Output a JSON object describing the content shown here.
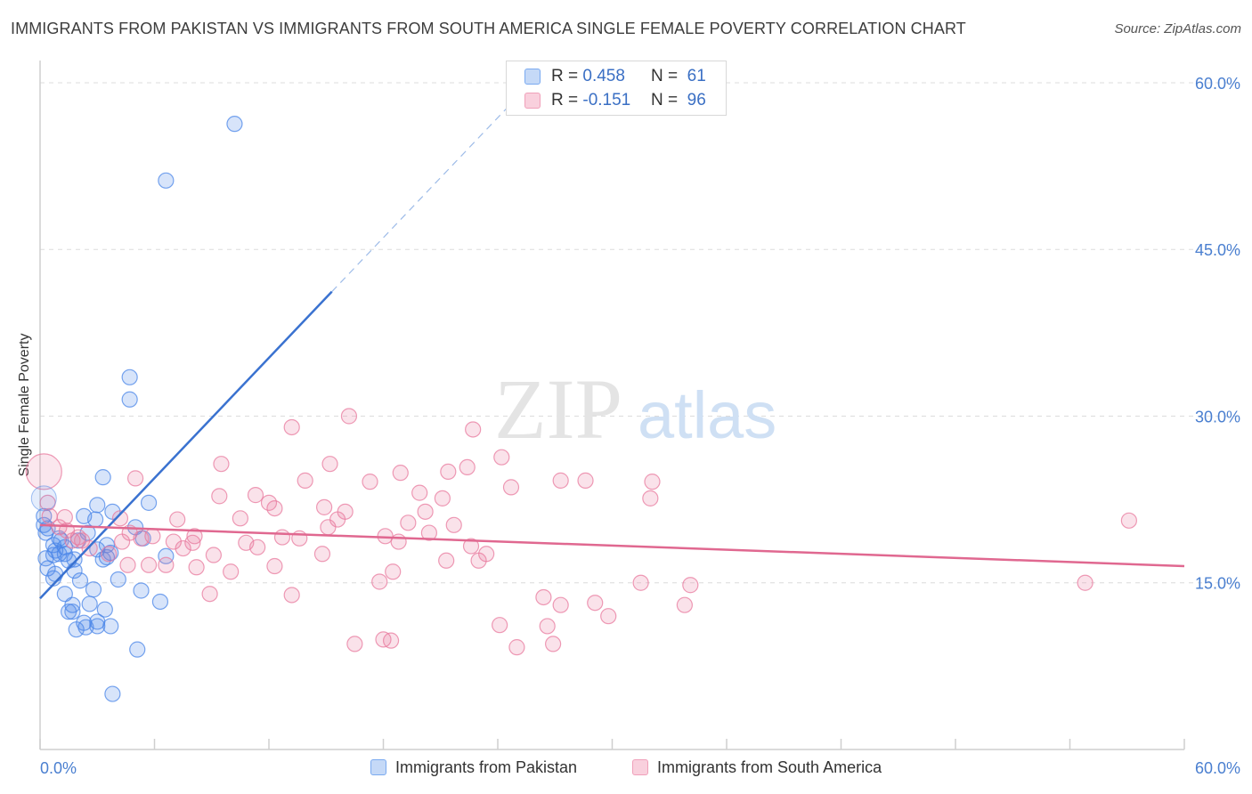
{
  "header": {
    "title": "IMMIGRANTS FROM PAKISTAN VS IMMIGRANTS FROM SOUTH AMERICA SINGLE FEMALE POVERTY CORRELATION CHART",
    "source": "Source: ZipAtlas.com"
  },
  "watermark": {
    "zip": "ZIP",
    "atlas": "atlas"
  },
  "legend": {
    "r_label": "R = ",
    "n_label": "N = ",
    "series": [
      {
        "r": "0.458",
        "n": "61",
        "color": "#7aaaf0",
        "fill": "#c5d9f7"
      },
      {
        "r": "-0.151",
        "n": "96",
        "color": "#f0a0ba",
        "fill": "#f9d0dd"
      }
    ]
  },
  "bottom_legend": {
    "items": [
      "Immigrants from Pakistan",
      "Immigrants from South America"
    ]
  },
  "chart_data": {
    "type": "scatter",
    "ylabel": "Single Female Poverty",
    "xlim": [
      0,
      60
    ],
    "ylim": [
      0,
      62
    ],
    "x_tick_labels": [
      {
        "v": 0,
        "t": "0.0%"
      },
      {
        "v": 60,
        "t": "60.0%"
      }
    ],
    "y_tick_labels": [
      {
        "v": 15,
        "t": "15.0%"
      },
      {
        "v": 30,
        "t": "30.0%"
      },
      {
        "v": 45,
        "t": "45.0%"
      },
      {
        "v": 60,
        "t": "60.0%"
      }
    ],
    "grid": true,
    "series": [
      {
        "name": "Immigrants from Pakistan",
        "color": "#4a86e8",
        "line_color": "#3a72d0",
        "trend": {
          "x0": 0,
          "y0": 13.6,
          "x1": 15.3,
          "y1": 41.2,
          "dash_to_x": 25.3,
          "dash_to_y": 59.2
        },
        "points": [
          [
            10.2,
            56.3
          ],
          [
            6.6,
            51.2
          ],
          [
            4.7,
            33.5
          ],
          [
            4.7,
            31.5
          ],
          [
            3.3,
            24.5
          ],
          [
            5.7,
            22.2
          ],
          [
            3.0,
            22.0
          ],
          [
            3.8,
            21.4
          ],
          [
            0.2,
            21.0
          ],
          [
            2.3,
            21.0
          ],
          [
            2.9,
            20.7
          ],
          [
            0.2,
            20.2
          ],
          [
            5.0,
            20.0
          ],
          [
            0.4,
            19.9
          ],
          [
            0.3,
            19.5
          ],
          [
            2.5,
            19.5
          ],
          [
            1.0,
            19.0
          ],
          [
            1.1,
            18.8
          ],
          [
            5.4,
            19.0
          ],
          [
            2.0,
            18.8
          ],
          [
            0.7,
            18.4
          ],
          [
            1.3,
            18.2
          ],
          [
            3.5,
            18.4
          ],
          [
            3.0,
            18.0
          ],
          [
            0.8,
            17.9
          ],
          [
            1.3,
            17.6
          ],
          [
            3.7,
            17.7
          ],
          [
            1.0,
            17.6
          ],
          [
            0.7,
            17.5
          ],
          [
            3.5,
            17.3
          ],
          [
            0.3,
            17.2
          ],
          [
            6.6,
            17.4
          ],
          [
            1.5,
            17.0
          ],
          [
            1.8,
            17.1
          ],
          [
            3.3,
            17.1
          ],
          [
            0.4,
            16.3
          ],
          [
            1.8,
            16.1
          ],
          [
            0.8,
            15.8
          ],
          [
            0.7,
            15.4
          ],
          [
            2.1,
            15.2
          ],
          [
            4.1,
            15.3
          ],
          [
            2.8,
            14.4
          ],
          [
            5.3,
            14.3
          ],
          [
            1.3,
            14.0
          ],
          [
            6.3,
            13.3
          ],
          [
            1.7,
            13.0
          ],
          [
            2.6,
            13.1
          ],
          [
            3.4,
            12.6
          ],
          [
            1.5,
            12.4
          ],
          [
            1.7,
            12.4
          ],
          [
            2.3,
            11.4
          ],
          [
            3.0,
            11.5
          ],
          [
            2.4,
            11.0
          ],
          [
            3.0,
            11.1
          ],
          [
            3.7,
            11.1
          ],
          [
            1.9,
            10.8
          ],
          [
            5.1,
            9.0
          ],
          [
            3.8,
            5.0
          ]
        ]
      },
      {
        "name": "Immigrants from South America",
        "color": "#e87a9e",
        "line_color": "#e06890",
        "trend": {
          "x0": 0,
          "y0": 20.2,
          "x1": 60,
          "y1": 16.5
        },
        "points": [
          [
            0.2,
            25.0
          ],
          [
            16.2,
            30.0
          ],
          [
            13.2,
            29.0
          ],
          [
            22.7,
            28.8
          ],
          [
            24.2,
            26.3
          ],
          [
            9.5,
            25.7
          ],
          [
            15.2,
            25.7
          ],
          [
            22.4,
            25.4
          ],
          [
            21.4,
            25.0
          ],
          [
            18.9,
            24.9
          ],
          [
            5.0,
            24.4
          ],
          [
            13.9,
            24.2
          ],
          [
            17.3,
            24.1
          ],
          [
            27.3,
            24.2
          ],
          [
            28.6,
            24.2
          ],
          [
            32.1,
            24.1
          ],
          [
            24.7,
            23.6
          ],
          [
            19.9,
            23.1
          ],
          [
            9.4,
            22.8
          ],
          [
            11.3,
            22.9
          ],
          [
            21.1,
            22.6
          ],
          [
            32.0,
            22.6
          ],
          [
            0.4,
            22.2
          ],
          [
            12.0,
            22.2
          ],
          [
            12.3,
            21.7
          ],
          [
            14.9,
            21.8
          ],
          [
            16.0,
            21.4
          ],
          [
            20.2,
            21.4
          ],
          [
            0.5,
            21.0
          ],
          [
            1.3,
            20.9
          ],
          [
            4.2,
            20.8
          ],
          [
            7.2,
            20.7
          ],
          [
            10.5,
            20.8
          ],
          [
            15.6,
            20.7
          ],
          [
            19.3,
            20.4
          ],
          [
            21.7,
            20.2
          ],
          [
            1.0,
            20.0
          ],
          [
            15.1,
            20.0
          ],
          [
            1.4,
            19.7
          ],
          [
            57.1,
            20.6
          ],
          [
            4.7,
            19.5
          ],
          [
            8.1,
            19.2
          ],
          [
            12.7,
            19.1
          ],
          [
            18.1,
            19.2
          ],
          [
            20.4,
            19.5
          ],
          [
            2.0,
            19.1
          ],
          [
            5.3,
            19.0
          ],
          [
            5.9,
            19.2
          ],
          [
            13.6,
            19.0
          ],
          [
            1.7,
            18.8
          ],
          [
            2.2,
            18.8
          ],
          [
            4.3,
            18.7
          ],
          [
            7.0,
            18.7
          ],
          [
            8.0,
            18.6
          ],
          [
            10.8,
            18.6
          ],
          [
            18.8,
            18.7
          ],
          [
            22.6,
            18.3
          ],
          [
            2.6,
            18.1
          ],
          [
            11.4,
            18.2
          ],
          [
            7.5,
            18.1
          ],
          [
            9.1,
            17.5
          ],
          [
            3.6,
            17.6
          ],
          [
            14.8,
            17.6
          ],
          [
            23.4,
            17.6
          ],
          [
            21.3,
            17.0
          ],
          [
            23.0,
            17.0
          ],
          [
            5.7,
            16.6
          ],
          [
            6.6,
            16.6
          ],
          [
            12.3,
            16.5
          ],
          [
            4.6,
            16.6
          ],
          [
            8.2,
            16.4
          ],
          [
            10.0,
            16.0
          ],
          [
            18.5,
            16.0
          ],
          [
            17.8,
            15.1
          ],
          [
            31.5,
            15.0
          ],
          [
            34.1,
            14.8
          ],
          [
            54.8,
            15.0
          ],
          [
            8.9,
            14.0
          ],
          [
            13.2,
            13.9
          ],
          [
            26.4,
            13.7
          ],
          [
            29.1,
            13.2
          ],
          [
            27.3,
            13.0
          ],
          [
            33.8,
            13.0
          ],
          [
            29.8,
            12.0
          ],
          [
            24.1,
            11.2
          ],
          [
            26.6,
            11.1
          ],
          [
            16.5,
            9.5
          ],
          [
            18.0,
            9.9
          ],
          [
            18.4,
            9.8
          ],
          [
            25.0,
            9.2
          ],
          [
            26.9,
            9.5
          ]
        ]
      }
    ]
  }
}
